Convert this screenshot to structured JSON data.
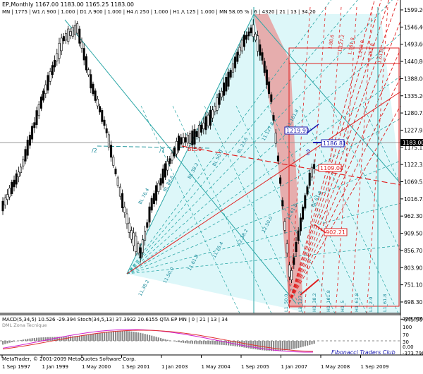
{
  "header": {
    "line1": "EP,Monthly  1167.00 1183.00 1165.25 1183.00",
    "line2": "MN | 1775 | W1 /\\ 900 | 1.000 | D1 /\\ 900 | 1.000 | H4 /\\ 250 | 1.000 | H1 /\\ 125 | 1.000 | MN 58.05 % | 6 | 4320 | 21 | 13 | 34.20"
  },
  "price_labels": [
    "1599.20",
    "1546.40",
    "1493.60",
    "1440.80",
    "1388.00",
    "1335.20",
    "1280.75",
    "1227.95",
    "1175.15",
    "1122.35",
    "1069.55",
    "1016.75",
    "962.30",
    "909.50",
    "856.70",
    "803.90",
    "751.10",
    "698.30",
    "645.50"
  ],
  "current_price": "1183.00",
  "chart_annotations": {
    "box1": "1219.92",
    "box2": "1186.81",
    "box3": "1109.04",
    "box4": "902.21",
    "label_bl": "BL50",
    "label_a": "/2",
    "label_b": "/1"
  },
  "fan_labels": [
    "11.38.2",
    "11.50.0",
    "11.61.8",
    "11.76.4",
    "12.38.2",
    "12.50.0",
    "12.61.8",
    "BL 61.8",
    "BL 76.4",
    "BL 88.6",
    "BL 38.2",
    "BL 50.0",
    "BL 23.6",
    "11.127.2",
    "11.161.8"
  ],
  "fan_labels_red": [
    "1.88.6",
    "1.127.2",
    "1.161.8",
    "1.200.0",
    "1.261.8",
    "1.61.8"
  ],
  "vertical_labels": [
    "L1_50.0",
    "L1_127.2",
    "H1_38.2",
    "H1_161.8",
    "H1_5",
    "H1_61.8",
    "L1_2.0",
    "L1_61.8"
  ],
  "sub_panel": {
    "title": "MACD(5,34,5) 10.526 -29.394  Stoch(34,5,13) 37.3932 20.6155  QTA EP MN | 0 | 21 | 13 | 34",
    "subtitle": "DML Zona Tecnique",
    "levels": [
      "239.676",
      "100",
      "70",
      "30",
      "0.00",
      "-373.796"
    ]
  },
  "footer": {
    "copyright": "MetaTrader, © 2001-2009 MetaQuotes Software Corp.",
    "brand": "Fibonacci Traders Club"
  },
  "time_labels": [
    "1 Sep 1997",
    "1 Jan 1999",
    "1 May 2000",
    "1 Sep 2001",
    "1 Jan 2003",
    "1 May 2004",
    "1 Sep 2005",
    "1 Jan 2007",
    "1 May 2008",
    "1 Sep 2009"
  ],
  "colors": {
    "bg": "#ffffff",
    "candle": "#000000",
    "fan_fill": "#d9f6f8",
    "fan_line": "#2aa6a6",
    "red_zone": "#e8a0a0",
    "red_line": "#e02020",
    "blue_box": "#1a1ab0",
    "macd_hist": "#8c8c8c",
    "stoch_main": "#d020d0",
    "stoch_signal": "#e03030"
  }
}
